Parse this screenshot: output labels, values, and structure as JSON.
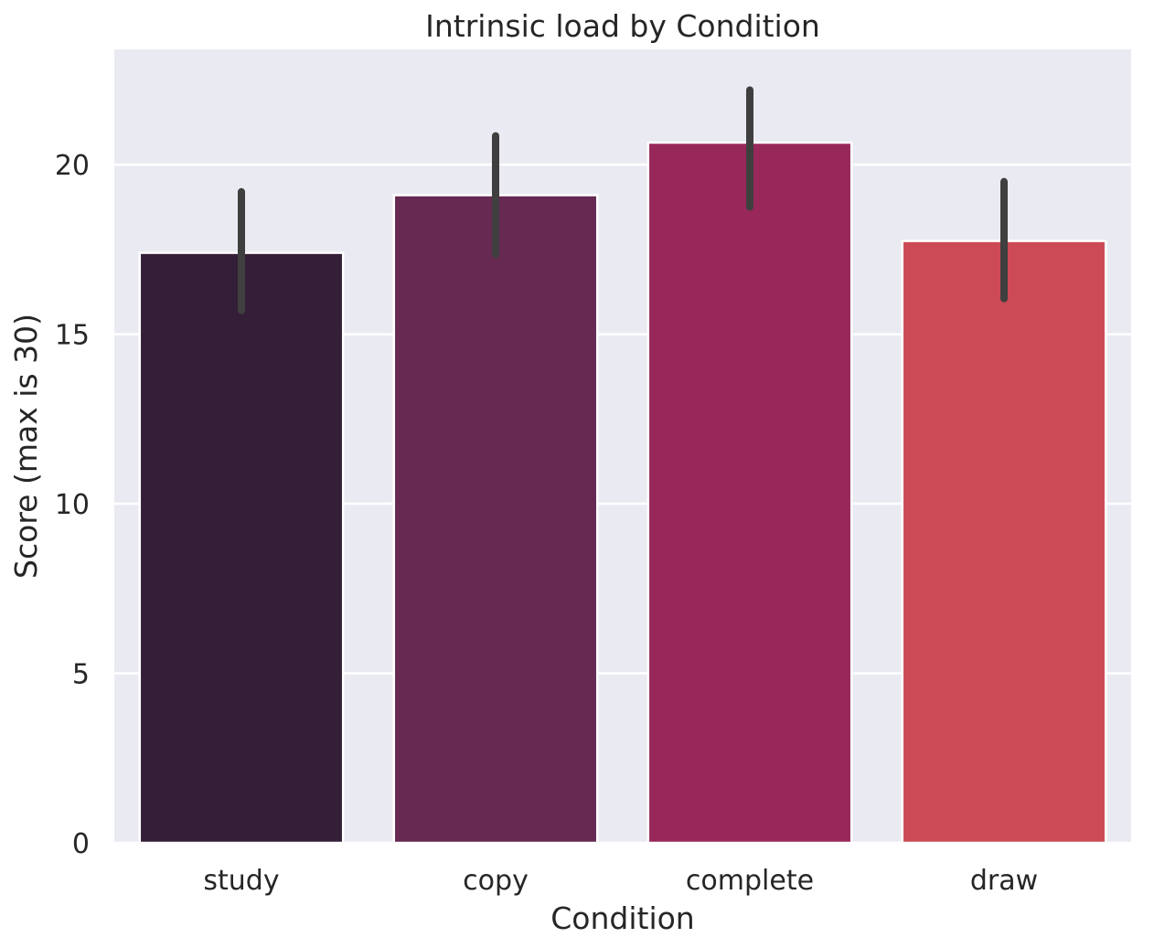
{
  "chart_data": {
    "type": "bar",
    "title": "Intrinsic load by Condition",
    "xlabel": "Condition",
    "ylabel": "Score (max is 30)",
    "categories": [
      "study",
      "copy",
      "complete",
      "draw"
    ],
    "values": [
      17.4,
      19.1,
      20.65,
      17.75
    ],
    "error_low": [
      15.7,
      17.35,
      18.75,
      16.05
    ],
    "error_high": [
      19.2,
      20.85,
      22.2,
      19.5
    ],
    "colors": [
      "#351e38",
      "#652952",
      "#98285a",
      "#cb4a55"
    ],
    "ylim": [
      0,
      23.4
    ],
    "yticks": [
      0,
      5,
      10,
      15,
      20
    ],
    "grid": true,
    "background": "#eaeaf2",
    "error_color": "#3f3f3f"
  }
}
